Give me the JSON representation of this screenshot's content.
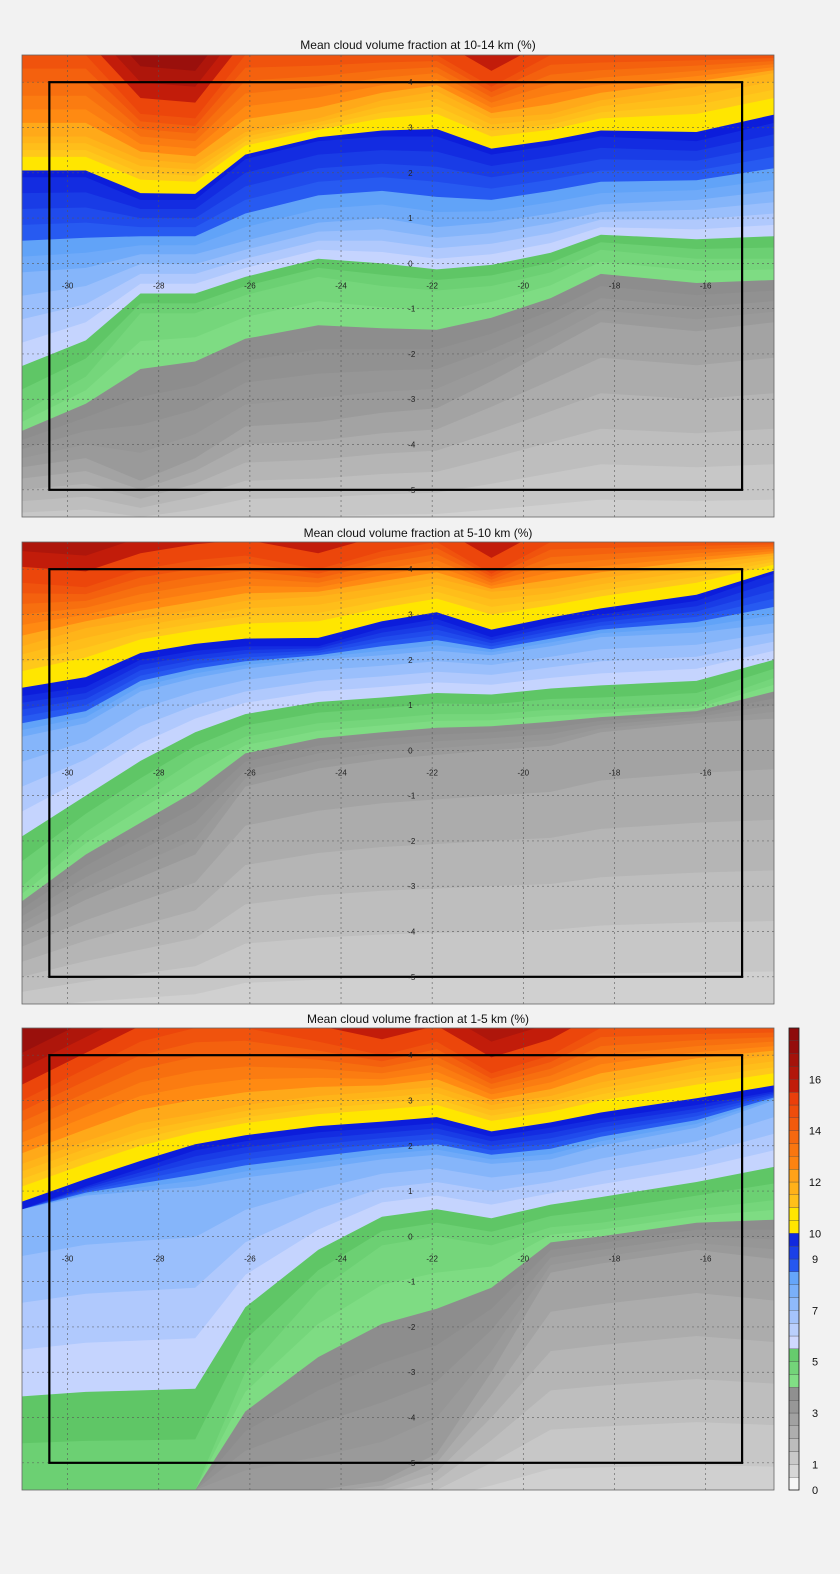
{
  "chart_data": [
    {
      "type": "heatmap",
      "title": "Mean cloud volume fraction at 10-14 km (%)",
      "xlim": [
        -31,
        -14.5
      ],
      "ylim": [
        -5.6,
        4.6
      ],
      "xticks": [
        -30,
        -28,
        -26,
        -24,
        -22,
        -20,
        -18,
        -16
      ],
      "xtick_labels": [
        "-30",
        "-28",
        "-26",
        "-24",
        "-22",
        "-20",
        "-18",
        "-16"
      ],
      "yticks": [
        4,
        3,
        2,
        1,
        0,
        -1,
        -2,
        -3,
        -4,
        -5
      ],
      "ytick_labels": [
        "4",
        "3",
        "2",
        "1",
        "0",
        "-1",
        "-2",
        "-3",
        "-4",
        "-5"
      ],
      "grid": true,
      "box": {
        "lon": [
          -30.4,
          -15.2
        ],
        "lat": [
          -5,
          4
        ]
      },
      "contours": {
        "x": [
          -31,
          -29.6,
          -28.4,
          -27.2,
          -26.1,
          -24.5,
          -23.1,
          -21.9,
          -20.7,
          -19.4,
          -18.3,
          -16.2,
          -14.5
        ],
        "levels": [
          {
            "value": 3,
            "y": [
              -4.5,
              -4.3,
              -4.8,
              -4.3,
              -3.6,
              -3.5,
              -3.3,
              -3.2,
              -2.6,
              -1.9,
              -1.3,
              -1.5,
              -1.3
            ]
          },
          {
            "value": 5,
            "y": [
              -3.3,
              -2.5,
              -1.1,
              -1.1,
              -0.7,
              -0.3,
              -0.5,
              -0.6,
              -0.5,
              -0.2,
              0.3,
              0.1,
              0.1
            ]
          },
          {
            "value": 8,
            "y": [
              -0.2,
              -0.1,
              0.2,
              0.2,
              0.5,
              0.9,
              1.0,
              0.8,
              0.9,
              1.1,
              1.3,
              1.4,
              1.6
            ]
          },
          {
            "value": 10,
            "y": [
              1.9,
              1.9,
              1.4,
              1.4,
              2.3,
              2.7,
              2.8,
              2.8,
              2.4,
              2.6,
              2.8,
              2.7,
              3.1
            ]
          },
          {
            "value": 12,
            "y": [
              2.8,
              2.8,
              2.3,
              2.2,
              2.9,
              3.2,
              3.6,
              3.8,
              3.2,
              3.3,
              3.6,
              3.9,
              4.2
            ]
          },
          {
            "value": 15,
            "y": [
              4.6,
              4.6,
              3.3,
              3.2,
              4.6,
              4.6,
              4.6,
              4.6,
              3.9,
              4.6,
              4.6,
              4.6,
              4.6
            ]
          }
        ]
      }
    },
    {
      "type": "heatmap",
      "title": "Mean cloud volume fraction at 5-10 km (%)",
      "xlim": [
        -31,
        -14.5
      ],
      "ylim": [
        -5.6,
        4.6
      ],
      "xticks": [
        -30,
        -28,
        -26,
        -24,
        -22,
        -20,
        -18,
        -16
      ],
      "xtick_labels": [
        "-30",
        "-28",
        "-26",
        "-24",
        "-22",
        "-20",
        "-18",
        "-16"
      ],
      "yticks": [
        4,
        3,
        2,
        1,
        0,
        -1,
        -2,
        -3,
        -4,
        -5
      ],
      "ytick_labels": [
        "4",
        "3",
        "2",
        "1",
        "0",
        "-1",
        "-2",
        "-3",
        "-4",
        "-5"
      ],
      "grid": true,
      "box": {
        "lon": [
          -30.4,
          -15.2
        ],
        "lat": [
          -5,
          4
        ]
      },
      "contours": {
        "x": [
          -31,
          -29.6,
          -28.4,
          -27.2,
          -26.1,
          -24.5,
          -23.1,
          -21.9,
          -20.7,
          -19.4,
          -18.3,
          -16.2,
          -14.5
        ],
        "levels": [
          {
            "value": 3,
            "y": [
              -4.0,
              -3.3,
              -2.8,
              -2.3,
              -0.8,
              -0.4,
              -0.2,
              -0.1,
              0.0,
              0.1,
              0.4,
              0.6,
              0.7
            ]
          },
          {
            "value": 5,
            "y": [
              -3.0,
              -1.8,
              -1.0,
              -0.2,
              0.3,
              0.6,
              0.7,
              0.8,
              0.8,
              0.9,
              0.9,
              1.0,
              1.6
            ]
          },
          {
            "value": 8,
            "y": [
              0.3,
              0.6,
              1.3,
              1.6,
              1.8,
              2.0,
              2.1,
              2.2,
              2.1,
              2.3,
              2.5,
              2.6,
              2.8
            ]
          },
          {
            "value": 10,
            "y": [
              1.2,
              1.4,
              2.0,
              2.2,
              2.3,
              2.3,
              2.7,
              2.9,
              2.5,
              2.8,
              3.0,
              3.3,
              3.9
            ]
          },
          {
            "value": 12,
            "y": [
              2.3,
              2.7,
              2.9,
              3.1,
              3.3,
              3.4,
              3.6,
              3.8,
              3.5,
              3.6,
              3.8,
              4.1,
              4.3
            ]
          },
          {
            "value": 15,
            "y": [
              3.7,
              3.6,
              4.0,
              4.2,
              4.3,
              4.0,
              4.4,
              4.6,
              3.9,
              4.6,
              4.6,
              4.6,
              4.6
            ]
          }
        ]
      }
    },
    {
      "type": "heatmap",
      "title": "Mean cloud volume fraction at 1-5 km (%)",
      "xlim": [
        -31,
        -14.5
      ],
      "ylim": [
        -5.6,
        4.6
      ],
      "xticks": [
        -30,
        -28,
        -26,
        -24,
        -22,
        -20,
        -18,
        -16
      ],
      "xtick_labels": [
        "-30",
        "-28",
        "-26",
        "-24",
        "-22",
        "-20",
        "-18",
        "-16"
      ],
      "yticks": [
        4,
        3,
        2,
        1,
        0,
        -1,
        -2,
        -3,
        -4,
        -5
      ],
      "ytick_labels": [
        "4",
        "3",
        "2",
        "1",
        "0",
        "-1",
        "-2",
        "-3",
        "-4",
        "-5"
      ],
      "grid": true,
      "box": {
        "lon": [
          -30.4,
          -15.2
        ],
        "lat": [
          -5,
          4
        ]
      },
      "contours": {
        "x": [
          -31,
          -29.6,
          -28.4,
          -27.2,
          -26.1,
          -24.5,
          -23.1,
          -21.9,
          -20.7,
          -19.4,
          -18.3,
          -16.2,
          -14.5
        ],
        "levels": [
          {
            "value": 3,
            "y": [
              -5.6,
              -5.6,
              -5.6,
              -5.6,
              -5.6,
              -5.6,
              -5.4,
              -4.8,
              -3.0,
              -0.8,
              -0.6,
              -0.3,
              -0.5
            ]
          },
          {
            "value": 5,
            "y": [
              -5.6,
              -5.6,
              -5.6,
              -5.6,
              -3.0,
              -1.2,
              -0.2,
              0.0,
              -0.2,
              0.2,
              0.3,
              0.6,
              0.8
            ]
          },
          {
            "value": 8,
            "y": [
              0.6,
              0.9,
              1.0,
              1.1,
              1.3,
              1.5,
              1.7,
              1.8,
              1.6,
              1.7,
              2.0,
              2.4,
              3.0
            ]
          },
          {
            "value": 10,
            "y": [
              0.6,
              1.1,
              1.5,
              1.9,
              2.1,
              2.3,
              2.4,
              2.5,
              2.2,
              2.4,
              2.6,
              2.9,
              3.2
            ]
          },
          {
            "value": 12,
            "y": [
              1.6,
              2.1,
              2.5,
              2.7,
              2.9,
              3.1,
              3.2,
              3.3,
              2.9,
              3.1,
              3.4,
              3.8,
              4.0
            ]
          },
          {
            "value": 15,
            "y": [
              3.0,
              3.7,
              4.3,
              4.6,
              4.6,
              4.3,
              4.0,
              4.3,
              3.6,
              4.0,
              4.6,
              4.6,
              4.6
            ]
          }
        ]
      }
    }
  ],
  "colorbar": {
    "ticks": [
      0,
      1,
      3,
      5,
      7,
      9,
      10,
      12,
      14,
      16
    ],
    "tick_labels": [
      "0",
      "1",
      "3",
      "5",
      "7",
      "9",
      "10",
      "12",
      "14",
      "16"
    ],
    "range": [
      0,
      18
    ],
    "colors": {
      "white": "#ffffff",
      "gray": "#8c8c8c",
      "green": "#6ccf72",
      "light_blue": "#c8d6ff",
      "blue": "#0a1ee0",
      "yellow": "#ffe600",
      "orange": "#ff8c10",
      "red": "#e8400a",
      "dark_red": "#8e0c0c"
    }
  }
}
